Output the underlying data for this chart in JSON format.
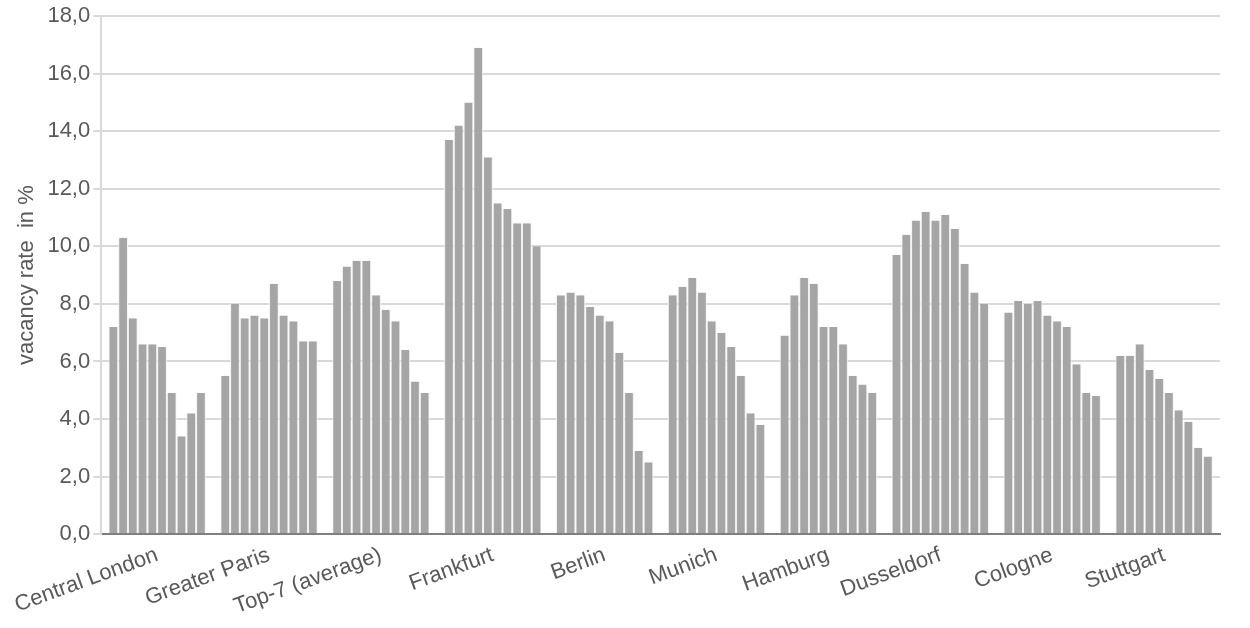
{
  "chart_data": {
    "type": "bar",
    "ylabel": "vacancy rate  in %",
    "categories": [
      "Central London",
      "Greater Paris",
      "Top-7 (average)",
      "Frankfurt",
      "Berlin",
      "Munich",
      "Hamburg",
      "Dusseldorf",
      "Cologne",
      "Stuttgart"
    ],
    "series": [
      {
        "color": "#a5a5a5",
        "values": [
          7.2,
          5.5,
          8.8,
          13.7,
          8.3,
          8.3,
          6.9,
          9.7,
          7.7,
          6.2
        ]
      },
      {
        "color": "#a5a5a5",
        "values": [
          10.3,
          8.0,
          9.3,
          14.2,
          8.4,
          8.6,
          8.3,
          10.4,
          8.1,
          6.2
        ]
      },
      {
        "color": "#a5a5a5",
        "values": [
          7.5,
          7.5,
          9.5,
          15.0,
          8.3,
          8.9,
          8.9,
          10.9,
          8.0,
          6.6
        ]
      },
      {
        "color": "#a5a5a5",
        "values": [
          6.6,
          7.6,
          9.5,
          16.9,
          7.9,
          8.4,
          8.7,
          11.2,
          8.1,
          5.7
        ]
      },
      {
        "color": "#a5a5a5",
        "values": [
          6.6,
          7.5,
          8.3,
          13.1,
          7.6,
          7.4,
          7.2,
          10.9,
          7.6,
          5.4
        ]
      },
      {
        "color": "#a5a5a5",
        "values": [
          6.5,
          8.7,
          7.8,
          11.5,
          7.4,
          7.0,
          7.2,
          11.1,
          7.4,
          4.9
        ]
      },
      {
        "color": "#a5a5a5",
        "values": [
          4.9,
          7.6,
          7.4,
          11.3,
          6.3,
          6.5,
          6.6,
          10.6,
          7.2,
          4.3
        ]
      },
      {
        "color": "#a5a5a5",
        "values": [
          3.4,
          7.4,
          6.4,
          10.8,
          4.9,
          5.5,
          5.5,
          9.4,
          5.9,
          3.9
        ]
      },
      {
        "color": "#a5a5a5",
        "values": [
          4.2,
          6.7,
          5.3,
          10.8,
          2.9,
          4.2,
          5.2,
          8.4,
          4.9,
          3.0
        ]
      },
      {
        "color": "#a5a5a5",
        "values": [
          4.9,
          6.7,
          4.9,
          10.0,
          2.5,
          3.8,
          4.9,
          8.0,
          4.8,
          2.7
        ]
      }
    ],
    "ylim": [
      0,
      18
    ],
    "yticks": [
      {
        "value": 0,
        "label": "0,0"
      },
      {
        "value": 2,
        "label": "2,0"
      },
      {
        "value": 4,
        "label": "4,0"
      },
      {
        "value": 6,
        "label": "6,0"
      },
      {
        "value": 8,
        "label": "8,0"
      },
      {
        "value": 10,
        "label": "10,0"
      },
      {
        "value": 12,
        "label": "12,0"
      },
      {
        "value": 14,
        "label": "14,0"
      },
      {
        "value": 16,
        "label": "16,0"
      },
      {
        "value": 18,
        "label": "18,0"
      }
    ],
    "grid": "y",
    "legend": false
  }
}
